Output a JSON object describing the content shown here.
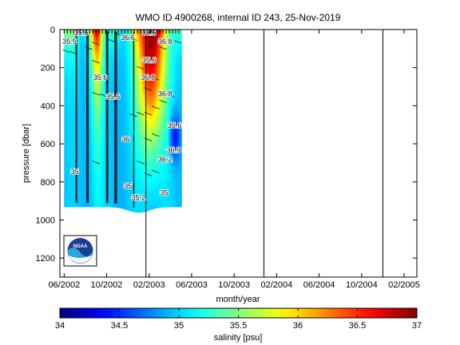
{
  "chart_data": {
    "type": "heatmap",
    "title": "WMO ID 4900268, internal ID 243, 25-Nov-2019",
    "xlabel": "month/year",
    "ylabel": "pressure [dbar]",
    "colorbar_label": "salinity [psu]",
    "x_ticks": [
      "06/2002",
      "10/2002",
      "02/2003",
      "06/2003",
      "10/2003",
      "02/2004",
      "06/2004",
      "10/2004",
      "02/2005"
    ],
    "x_range_months": [
      -0.4,
      33.2
    ],
    "y_ticks": [
      "0",
      "200",
      "400",
      "600",
      "800",
      "1000",
      "1200"
    ],
    "y_tick_values": [
      0,
      200,
      400,
      600,
      800,
      1000,
      1200
    ],
    "ylim": [
      0,
      1300
    ],
    "y_reversed": true,
    "clim": [
      34,
      37
    ],
    "colorbar_ticks": [
      "34",
      "34.5",
      "35",
      "35.5",
      "36",
      "36.5",
      "37"
    ],
    "colorbar_tick_values": [
      34,
      34.5,
      35,
      35.5,
      36,
      36.5,
      37
    ],
    "colormap": "jet",
    "vertical_markers_months": [
      7.7,
      18.8,
      30.0
    ],
    "profile_months": [
      0.3,
      0.6,
      0.9,
      1.2,
      1.5,
      1.8,
      2.1,
      2.4,
      2.7,
      3.0,
      3.3,
      3.6,
      3.9,
      4.2,
      4.5,
      4.8,
      5.1,
      5.4,
      5.7,
      6.0,
      6.3,
      6.6,
      6.9,
      7.2,
      7.5,
      7.8,
      8.1,
      8.4,
      8.7,
      9.0,
      9.3,
      9.6,
      9.9,
      10.2,
      10.5,
      10.8
    ],
    "contour_labels": [
      {
        "text": "35.6",
        "month": 1.6,
        "pressure": 30
      },
      {
        "text": "35.5",
        "month": 0.5,
        "pressure": 75
      },
      {
        "text": "36.6",
        "month": 8.0,
        "pressure": 30
      },
      {
        "text": "35.6",
        "month": 8.0,
        "pressure": 175
      },
      {
        "text": "36.6",
        "month": 6.0,
        "pressure": 55
      },
      {
        "text": "36.8",
        "month": 9.5,
        "pressure": 75
      },
      {
        "text": "35.6",
        "month": 3.4,
        "pressure": 265
      },
      {
        "text": "35.6",
        "month": 4.6,
        "pressure": 365
      },
      {
        "text": "36.8",
        "month": 7.9,
        "pressure": 265
      },
      {
        "text": "36.8",
        "month": 9.5,
        "pressure": 350
      },
      {
        "text": "35.6",
        "month": 10.4,
        "pressure": 515
      },
      {
        "text": "36",
        "month": 5.8,
        "pressure": 590
      },
      {
        "text": "36.9",
        "month": 10.3,
        "pressure": 645
      },
      {
        "text": "35",
        "month": 1.0,
        "pressure": 760
      },
      {
        "text": "35",
        "month": 6.0,
        "pressure": 835
      },
      {
        "text": "35.2",
        "month": 7.0,
        "pressure": 895
      },
      {
        "text": "35",
        "month": 9.4,
        "pressure": 870
      },
      {
        "text": "36.2",
        "month": 9.5,
        "pressure": 695
      }
    ],
    "grid": false,
    "legend": "none"
  },
  "logo": {
    "text": "NOAA"
  }
}
